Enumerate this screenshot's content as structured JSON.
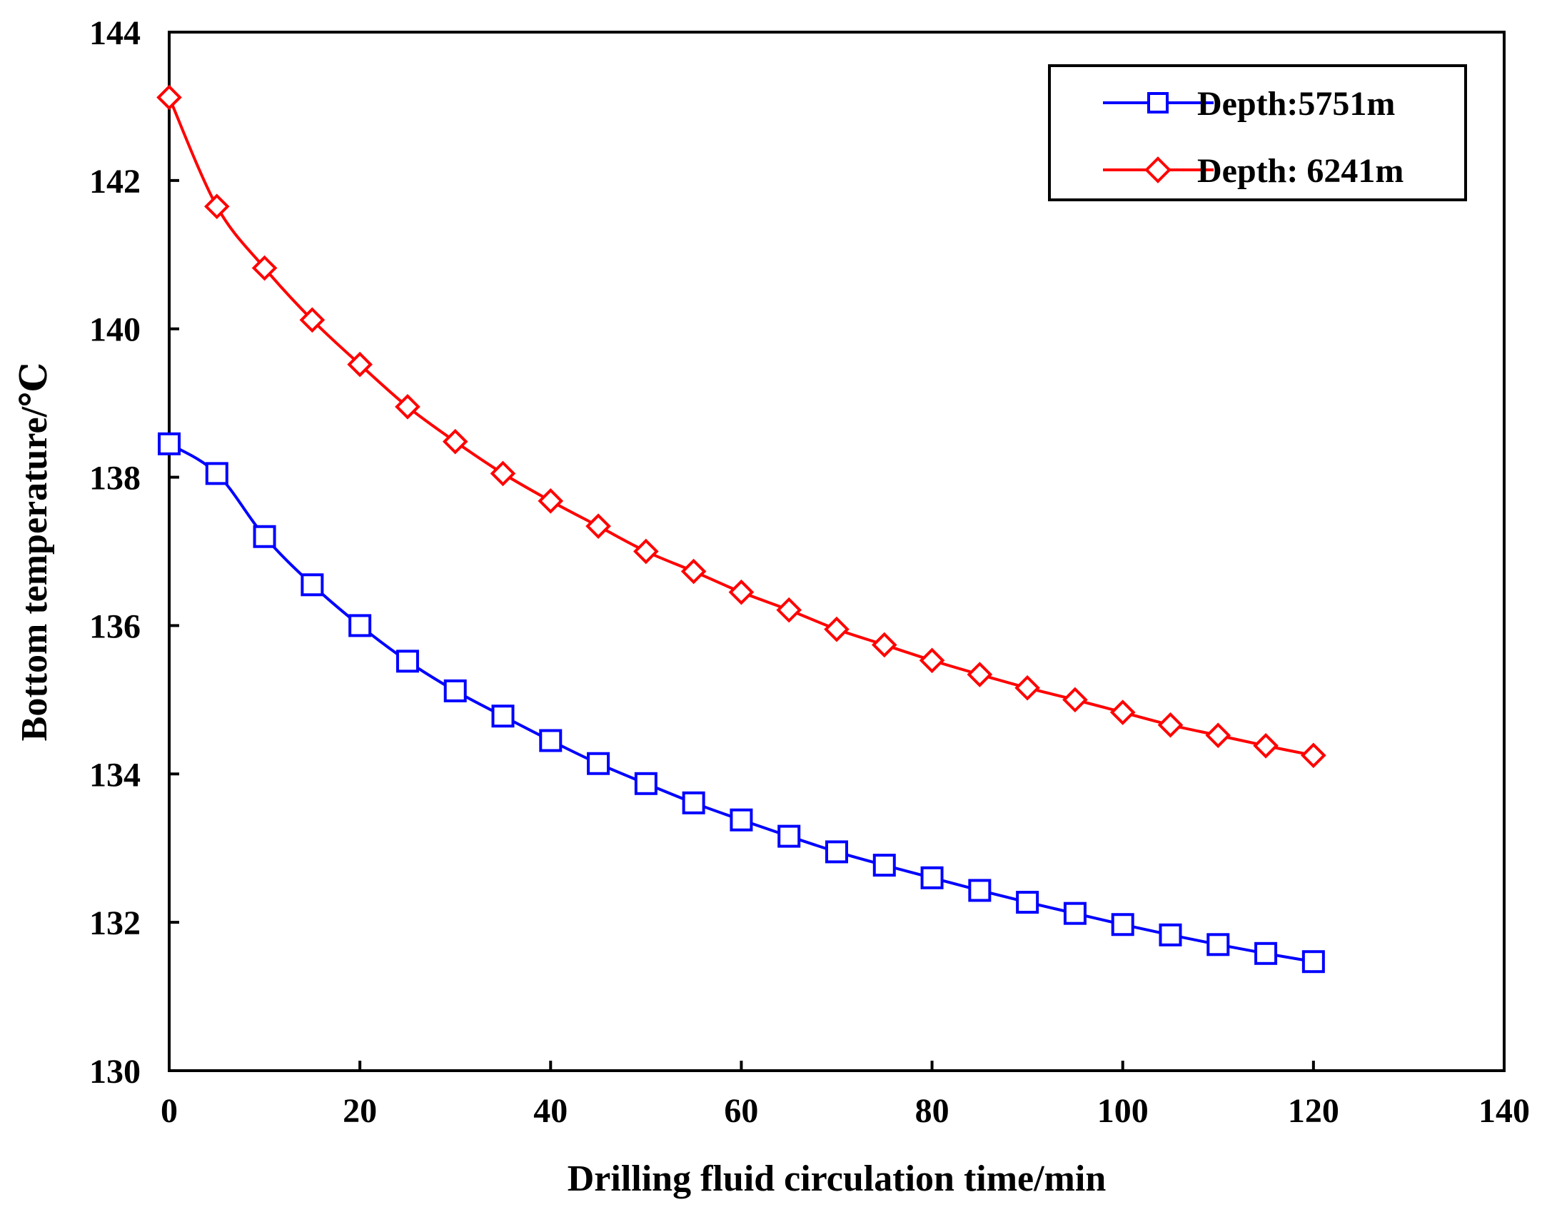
{
  "chart_data": {
    "type": "line",
    "title": "",
    "xlabel": "Drilling fluid circulation time/min",
    "ylabel": "Bottom temperature/℃",
    "xlim": [
      0,
      140
    ],
    "ylim": [
      130,
      144
    ],
    "xticks": [
      0,
      20,
      40,
      60,
      80,
      100,
      120,
      140
    ],
    "yticks": [
      130,
      132,
      134,
      136,
      138,
      140,
      142,
      144
    ],
    "grid": false,
    "legend_position": "top-right",
    "x": [
      0,
      5,
      10,
      15,
      20,
      25,
      30,
      35,
      40,
      45,
      50,
      55,
      60,
      65,
      70,
      75,
      80,
      85,
      90,
      95,
      100,
      105,
      110,
      115,
      120
    ],
    "series": [
      {
        "name": "Depth:5751m",
        "color": "#0000ff",
        "marker": "square",
        "values": [
          138.45,
          138.05,
          137.2,
          136.55,
          136.0,
          135.52,
          135.12,
          134.78,
          134.45,
          134.14,
          133.87,
          133.61,
          133.38,
          133.16,
          132.95,
          132.77,
          132.6,
          132.43,
          132.27,
          132.12,
          131.97,
          131.83,
          131.7,
          131.58,
          131.47
        ]
      },
      {
        "name": "Depth: 6241m",
        "color": "#ff0000",
        "marker": "diamond",
        "values": [
          143.12,
          141.65,
          140.82,
          140.12,
          139.52,
          138.95,
          138.48,
          138.05,
          137.68,
          137.34,
          137.0,
          136.73,
          136.45,
          136.21,
          135.95,
          135.74,
          135.53,
          135.34,
          135.16,
          135.0,
          134.83,
          134.66,
          134.52,
          134.38,
          134.25
        ]
      }
    ]
  }
}
